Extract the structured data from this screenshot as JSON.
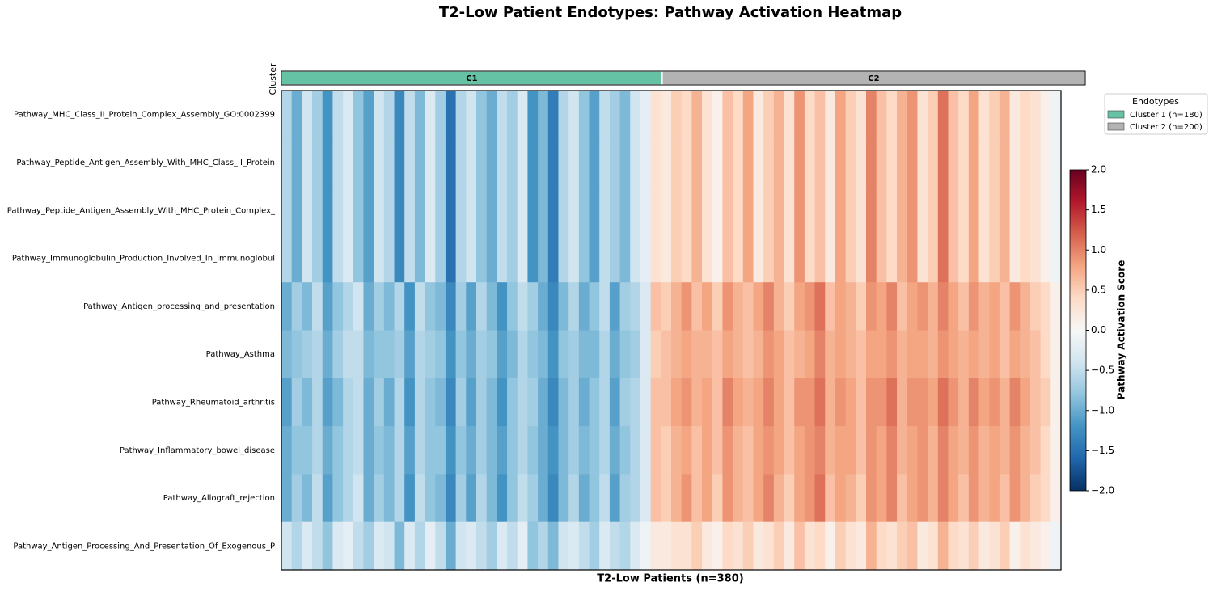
{
  "chart_data": {
    "type": "heatmap",
    "title": "T2-Low Patient Endotypes: Pathway Activation Heatmap",
    "xlabel": "T2-Low Patients (n=380)",
    "cluster_label": "Cluster",
    "clusters": [
      {
        "label": "C1",
        "name": "Cluster 1 (n=180)",
        "color": "#66c2a5",
        "size": 180
      },
      {
        "label": "C2",
        "name": "Cluster 2 (n=200)",
        "color": "#b3b3b3",
        "size": 200
      }
    ],
    "legend_title": "Endotypes",
    "colorbar_label": "Pathway Activation Score",
    "clim": [
      -2,
      2
    ],
    "cticks": [
      {
        "value": -2,
        "label": "−2.0"
      },
      {
        "value": -1.5,
        "label": "−1.5"
      },
      {
        "value": -1,
        "label": "−1.0"
      },
      {
        "value": -0.5,
        "label": "−0.5"
      },
      {
        "value": 0,
        "label": "0.0"
      },
      {
        "value": 0.5,
        "label": "0.5"
      },
      {
        "value": 1,
        "label": "1.0"
      },
      {
        "value": 1.5,
        "label": "1.5"
      },
      {
        "value": 2,
        "label": "2.0"
      }
    ],
    "rows": [
      "Pathway_MHC_Class_II_Protein_Complex_Assembly_GO:0002399",
      "Pathway_Peptide_Antigen_Assembly_With_MHC_Class_II_Protein",
      "Pathway_Peptide_Antigen_Assembly_With_MHC_Protein_Complex_",
      "Pathway_Immunoglobulin_Production_Involved_In_Immunoglobul",
      "Pathway_Antigen_processing_and_presentation",
      "Pathway_Asthma",
      "Pathway_Rheumatoid_arthritis",
      "Pathway_Inflammatory_bowel_disease",
      "Pathway_Allograft_rejection",
      "Pathway_Antigen_Processing_And_Presentation_Of_Exogenous_P"
    ],
    "values": [
      [
        -0.6,
        -1.0,
        -0.4,
        -0.7,
        -1.2,
        -0.5,
        -0.3,
        -0.8,
        -1.1,
        -0.4,
        -0.6,
        -1.3,
        -0.5,
        -0.9,
        -0.3,
        -0.7,
        -1.5,
        -0.6,
        -0.4,
        -0.8,
        -1.0,
        -0.5,
        -0.7,
        -0.3,
        -1.2,
        -0.9,
        -1.4,
        -0.6,
        -0.4,
        -0.8,
        -1.1,
        -0.5,
        -0.7,
        -0.9,
        -0.4,
        -0.2,
        0.3,
        0.2,
        0.5,
        0.4,
        0.7,
        0.3,
        0.1,
        0.6,
        0.4,
        0.8,
        0.2,
        0.5,
        0.7,
        0.3,
        0.9,
        0.4,
        0.6,
        0.2,
        0.8,
        0.5,
        0.3,
        1.0,
        0.6,
        0.4,
        0.7,
        0.9,
        0.3,
        0.5,
        1.1,
        0.6,
        0.4,
        0.8,
        0.3,
        0.5,
        0.7,
        0.2,
        0.4,
        0.3,
        0.1,
        -0.1
      ],
      [
        -0.6,
        -1.0,
        -0.4,
        -0.7,
        -1.2,
        -0.5,
        -0.3,
        -0.8,
        -1.1,
        -0.4,
        -0.6,
        -1.3,
        -0.5,
        -0.9,
        -0.3,
        -0.7,
        -1.5,
        -0.6,
        -0.4,
        -0.8,
        -1.0,
        -0.5,
        -0.7,
        -0.3,
        -1.2,
        -0.9,
        -1.4,
        -0.6,
        -0.4,
        -0.8,
        -1.1,
        -0.5,
        -0.7,
        -0.9,
        -0.4,
        -0.2,
        0.3,
        0.2,
        0.5,
        0.4,
        0.7,
        0.3,
        0.1,
        0.6,
        0.4,
        0.8,
        0.2,
        0.5,
        0.7,
        0.3,
        0.9,
        0.4,
        0.6,
        0.2,
        0.8,
        0.5,
        0.3,
        1.0,
        0.6,
        0.4,
        0.7,
        0.9,
        0.3,
        0.5,
        1.1,
        0.6,
        0.4,
        0.8,
        0.3,
        0.5,
        0.7,
        0.2,
        0.4,
        0.3,
        0.1,
        -0.1
      ],
      [
        -0.6,
        -1.0,
        -0.4,
        -0.7,
        -1.2,
        -0.5,
        -0.3,
        -0.8,
        -1.1,
        -0.4,
        -0.6,
        -1.3,
        -0.5,
        -0.9,
        -0.3,
        -0.7,
        -1.5,
        -0.6,
        -0.4,
        -0.8,
        -1.0,
        -0.5,
        -0.7,
        -0.3,
        -1.2,
        -0.9,
        -1.4,
        -0.6,
        -0.4,
        -0.8,
        -1.1,
        -0.5,
        -0.7,
        -0.9,
        -0.4,
        -0.2,
        0.3,
        0.2,
        0.5,
        0.4,
        0.7,
        0.3,
        0.1,
        0.6,
        0.4,
        0.8,
        0.2,
        0.5,
        0.7,
        0.3,
        0.9,
        0.4,
        0.6,
        0.2,
        0.8,
        0.5,
        0.3,
        1.0,
        0.6,
        0.4,
        0.7,
        0.9,
        0.3,
        0.5,
        1.1,
        0.6,
        0.4,
        0.8,
        0.3,
        0.5,
        0.7,
        0.2,
        0.4,
        0.3,
        0.1,
        -0.1
      ],
      [
        -0.6,
        -1.0,
        -0.4,
        -0.7,
        -1.2,
        -0.5,
        -0.3,
        -0.8,
        -1.1,
        -0.4,
        -0.6,
        -1.3,
        -0.5,
        -0.9,
        -0.3,
        -0.7,
        -1.5,
        -0.6,
        -0.4,
        -0.8,
        -1.0,
        -0.5,
        -0.7,
        -0.3,
        -1.2,
        -0.9,
        -1.4,
        -0.6,
        -0.4,
        -0.8,
        -1.1,
        -0.5,
        -0.7,
        -0.9,
        -0.4,
        -0.2,
        0.3,
        0.2,
        0.5,
        0.4,
        0.7,
        0.3,
        0.1,
        0.6,
        0.4,
        0.8,
        0.2,
        0.5,
        0.7,
        0.3,
        0.9,
        0.4,
        0.6,
        0.2,
        0.8,
        0.5,
        0.3,
        1.0,
        0.6,
        0.4,
        0.7,
        0.9,
        0.3,
        0.5,
        1.1,
        0.6,
        0.4,
        0.8,
        0.3,
        0.5,
        0.7,
        0.2,
        0.4,
        0.3,
        0.1,
        -0.1
      ],
      [
        -1.0,
        -0.7,
        -0.9,
        -0.5,
        -1.1,
        -0.8,
        -0.6,
        -0.4,
        -1.0,
        -0.7,
        -0.9,
        -0.6,
        -1.2,
        -0.5,
        -0.8,
        -0.9,
        -1.3,
        -0.7,
        -1.1,
        -0.6,
        -0.9,
        -1.2,
        -0.8,
        -0.5,
        -0.7,
        -1.0,
        -1.3,
        -0.9,
        -0.6,
        -1.0,
        -0.8,
        -0.5,
        -1.1,
        -0.7,
        -0.6,
        -0.3,
        0.6,
        0.5,
        0.7,
        0.9,
        0.6,
        0.8,
        0.5,
        0.9,
        0.7,
        0.6,
        0.8,
        1.0,
        0.7,
        0.5,
        0.8,
        0.9,
        1.1,
        0.6,
        0.8,
        0.7,
        0.5,
        0.9,
        0.8,
        1.0,
        0.6,
        0.8,
        0.9,
        0.7,
        1.0,
        0.8,
        0.6,
        0.9,
        0.7,
        0.8,
        0.6,
        0.9,
        0.7,
        0.5,
        0.4,
        0.1
      ],
      [
        -0.9,
        -0.8,
        -0.7,
        -0.6,
        -1.0,
        -0.7,
        -0.5,
        -0.5,
        -0.9,
        -0.8,
        -0.8,
        -0.7,
        -1.1,
        -0.6,
        -0.7,
        -0.8,
        -1.2,
        -0.8,
        -1.0,
        -0.7,
        -0.8,
        -1.1,
        -0.9,
        -0.6,
        -0.8,
        -0.9,
        -1.2,
        -0.8,
        -0.7,
        -0.9,
        -0.9,
        -0.6,
        -1.0,
        -0.8,
        -0.7,
        -0.3,
        0.5,
        0.6,
        0.7,
        0.8,
        0.7,
        0.7,
        0.6,
        0.8,
        0.7,
        0.6,
        0.7,
        0.9,
        0.8,
        0.6,
        0.7,
        0.8,
        1.0,
        0.7,
        0.8,
        0.7,
        0.6,
        0.8,
        0.8,
        0.9,
        0.7,
        0.8,
        0.8,
        0.7,
        0.9,
        0.8,
        0.7,
        0.8,
        0.7,
        0.8,
        0.6,
        0.8,
        0.7,
        0.6,
        0.4,
        0.1
      ],
      [
        -1.1,
        -0.7,
        -0.9,
        -0.6,
        -1.1,
        -0.9,
        -0.6,
        -0.5,
        -1.0,
        -0.7,
        -1.0,
        -0.6,
        -1.2,
        -0.6,
        -0.8,
        -0.9,
        -1.3,
        -0.7,
        -1.1,
        -0.7,
        -0.9,
        -1.2,
        -0.8,
        -0.6,
        -0.7,
        -1.0,
        -1.3,
        -0.9,
        -0.7,
        -1.0,
        -0.8,
        -0.6,
        -1.1,
        -0.7,
        -0.6,
        -0.3,
        0.6,
        0.6,
        0.8,
        0.9,
        0.7,
        0.8,
        0.6,
        1.0,
        0.8,
        0.7,
        0.8,
        1.0,
        0.8,
        0.6,
        0.9,
        0.9,
        1.1,
        0.7,
        0.9,
        0.8,
        0.6,
        0.9,
        0.9,
        1.1,
        0.7,
        0.9,
        0.9,
        0.8,
        1.1,
        0.9,
        0.7,
        1.0,
        0.8,
        0.9,
        0.7,
        1.0,
        0.8,
        0.6,
        0.5,
        0.1
      ],
      [
        -1.0,
        -0.8,
        -0.8,
        -0.6,
        -1.0,
        -0.8,
        -0.6,
        -0.5,
        -1.0,
        -0.8,
        -0.9,
        -0.6,
        -1.1,
        -0.6,
        -0.8,
        -0.8,
        -1.2,
        -0.8,
        -1.0,
        -0.7,
        -0.9,
        -1.1,
        -0.8,
        -0.6,
        -0.8,
        -1.0,
        -1.2,
        -0.9,
        -0.7,
        -0.9,
        -0.8,
        -0.6,
        -1.0,
        -0.8,
        -0.6,
        -0.3,
        0.6,
        0.5,
        0.7,
        0.8,
        0.6,
        0.8,
        0.6,
        0.9,
        0.7,
        0.6,
        0.8,
        0.9,
        0.8,
        0.6,
        0.8,
        0.9,
        1.0,
        0.7,
        0.8,
        0.8,
        0.6,
        0.9,
        0.8,
        1.0,
        0.7,
        0.8,
        0.9,
        0.7,
        1.0,
        0.8,
        0.7,
        0.9,
        0.7,
        0.8,
        0.7,
        0.9,
        0.7,
        0.6,
        0.4,
        0.1
      ],
      [
        -1.0,
        -0.7,
        -0.9,
        -0.5,
        -1.1,
        -0.8,
        -0.6,
        -0.4,
        -1.0,
        -0.7,
        -0.9,
        -0.6,
        -1.2,
        -0.5,
        -0.8,
        -0.9,
        -1.3,
        -0.7,
        -1.1,
        -0.6,
        -0.9,
        -1.2,
        -0.8,
        -0.5,
        -0.7,
        -1.0,
        -1.3,
        -0.9,
        -0.6,
        -1.0,
        -0.8,
        -0.5,
        -1.1,
        -0.7,
        -0.6,
        -0.3,
        0.6,
        0.5,
        0.7,
        0.9,
        0.6,
        0.8,
        0.5,
        0.9,
        0.7,
        0.6,
        0.8,
        1.0,
        0.7,
        0.5,
        0.8,
        0.9,
        1.1,
        0.6,
        0.8,
        0.7,
        0.5,
        0.9,
        0.8,
        1.0,
        0.6,
        0.8,
        0.9,
        0.7,
        1.0,
        0.8,
        0.6,
        0.9,
        0.7,
        0.8,
        0.6,
        0.9,
        0.7,
        0.5,
        0.4,
        0.1
      ],
      [
        -0.4,
        -0.6,
        -0.3,
        -0.5,
        -0.8,
        -0.3,
        -0.2,
        -0.5,
        -0.7,
        -0.3,
        -0.4,
        -0.9,
        -0.3,
        -0.6,
        -0.2,
        -0.5,
        -1.0,
        -0.4,
        -0.3,
        -0.5,
        -0.7,
        -0.3,
        -0.5,
        -0.2,
        -0.8,
        -0.6,
        -0.9,
        -0.4,
        -0.3,
        -0.5,
        -0.7,
        -0.3,
        -0.5,
        -0.6,
        -0.3,
        -0.1,
        0.2,
        0.2,
        0.3,
        0.3,
        0.5,
        0.2,
        0.1,
        0.4,
        0.3,
        0.5,
        0.2,
        0.3,
        0.5,
        0.2,
        0.6,
        0.3,
        0.4,
        0.1,
        0.5,
        0.3,
        0.2,
        0.7,
        0.4,
        0.3,
        0.5,
        0.6,
        0.2,
        0.3,
        0.7,
        0.4,
        0.3,
        0.5,
        0.2,
        0.3,
        0.5,
        0.1,
        0.3,
        0.2,
        0.1,
        -0.1
      ]
    ]
  }
}
